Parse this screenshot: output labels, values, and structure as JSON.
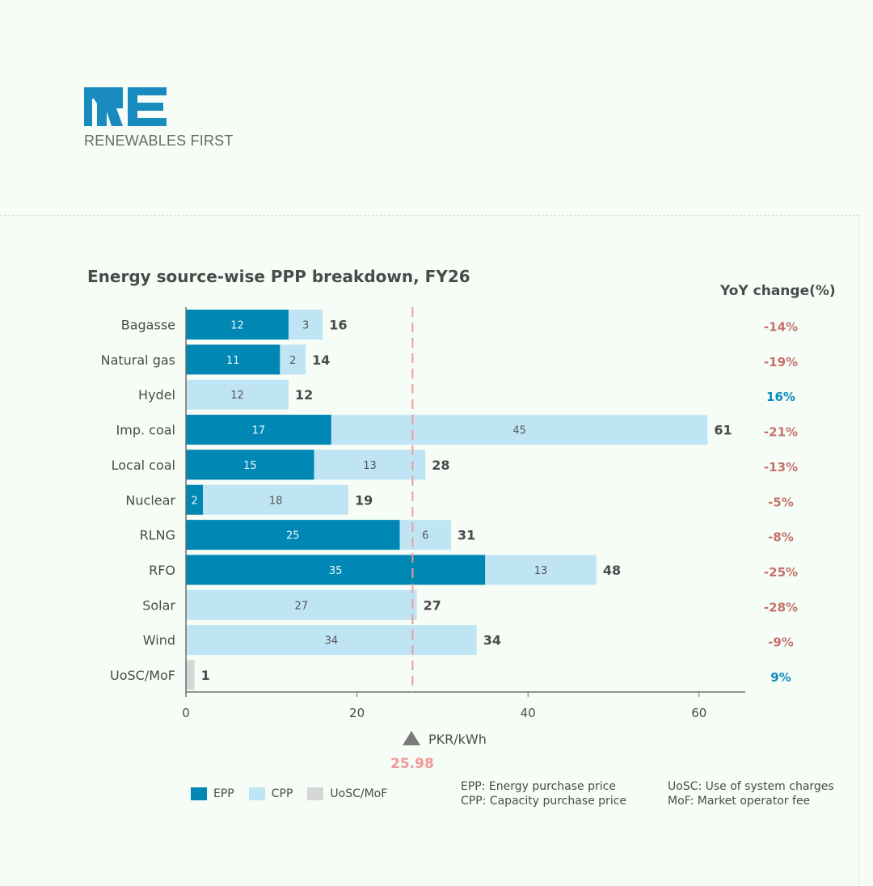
{
  "brand": {
    "name": "RENEWABLES FIRST",
    "logo_letters": "RE",
    "color": "#1a8bbf"
  },
  "chart_data": {
    "type": "bar",
    "orientation": "horizontal",
    "stacked": true,
    "title": "Energy source-wise PPP breakdown, FY26",
    "categories": [
      "Bagasse",
      "Natural gas",
      "Hydel",
      "Imp. coal",
      "Local coal",
      "Nuclear",
      "RLNG",
      "RFO",
      "Solar",
      "Wind",
      "UoSC/MoF"
    ],
    "series": [
      {
        "name": "EPP",
        "color": "#0087b3",
        "values": [
          12,
          11,
          null,
          17,
          15,
          2,
          25,
          35,
          null,
          null,
          null
        ]
      },
      {
        "name": "CPP",
        "color": "#bfe5f5",
        "values": [
          3,
          2,
          12,
          45,
          13,
          18,
          6,
          13,
          27,
          34,
          null
        ]
      },
      {
        "name": "UoSC/MoF",
        "color": "#d6d6d6",
        "values": [
          null,
          null,
          null,
          null,
          null,
          null,
          null,
          null,
          null,
          null,
          1
        ]
      }
    ],
    "segment_labels": {
      "EPP": [
        "12",
        "11",
        null,
        "17",
        "15",
        "2",
        "25",
        "35",
        null,
        null,
        null
      ],
      "CPP": [
        "3",
        "2",
        "12",
        "45",
        "13",
        "18",
        "6",
        "13",
        "27",
        "34",
        null
      ]
    },
    "totals": [
      16,
      14,
      12,
      61,
      28,
      19,
      31,
      48,
      27,
      34,
      1
    ],
    "yoy_header": "YoY change(%)",
    "yoy_change": [
      "-14%",
      "-19%",
      "16%",
      "-21%",
      "-13%",
      "-5%",
      "-8%",
      "-25%",
      "-28%",
      "-9%",
      "9%"
    ],
    "yoy_colors": {
      "negative": "#c4716b",
      "positive": "#0b8bbd"
    },
    "xlim": [
      0,
      65
    ],
    "xticks": [
      0,
      20,
      40,
      60
    ],
    "xlabel": "PKR/kWh",
    "reference_line": {
      "value": 26.5,
      "label": "25.98",
      "color": "#f29a9a",
      "style": "dashed"
    },
    "grid": false,
    "legend": {
      "position": "bottom-left",
      "entries": [
        "EPP",
        "CPP",
        "UoSC/MoF"
      ]
    }
  },
  "notes": {
    "epp": "EPP: Energy purchase price",
    "cpp": "CPP: Capacity purchase price",
    "uosc": "UoSC: Use of system charges",
    "mof": "MoF: Market operator fee"
  }
}
